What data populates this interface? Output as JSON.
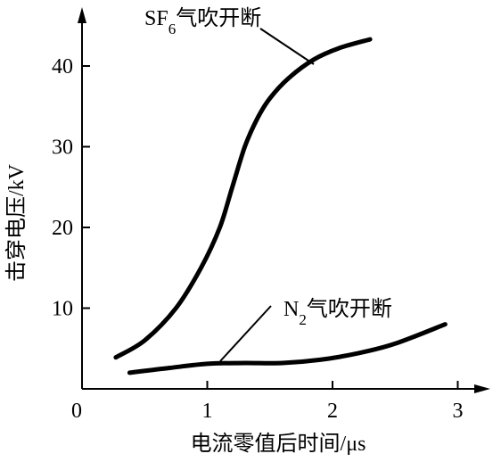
{
  "chart_data": {
    "type": "line",
    "xlabel": "电流零值后时间/μs",
    "ylabel": "击穿电压/kV",
    "origin_label": "0",
    "xlim": [
      0,
      3.3
    ],
    "ylim": [
      0,
      47
    ],
    "x_ticks": [
      {
        "value": 1,
        "label": "1"
      },
      {
        "value": 2,
        "label": "2"
      },
      {
        "value": 3,
        "label": "3"
      }
    ],
    "y_ticks": [
      {
        "value": 10,
        "label": "10"
      },
      {
        "value": 20,
        "label": "20"
      },
      {
        "value": 30,
        "label": "30"
      },
      {
        "value": 40,
        "label": "40"
      }
    ],
    "grid": false,
    "legend": "none",
    "series": [
      {
        "name": "SF6气吹开断",
        "label_main": "SF",
        "label_sub": "6",
        "label_rest": "气吹开断",
        "x": [
          0.27,
          0.5,
          0.75,
          0.95,
          1.1,
          1.2,
          1.3,
          1.4,
          1.5,
          1.65,
          1.85,
          2.05,
          2.3
        ],
        "values": [
          3.9,
          6.0,
          10.0,
          15.0,
          20.0,
          25.0,
          30.0,
          33.5,
          36.0,
          38.5,
          40.8,
          42.2,
          43.3
        ]
      },
      {
        "name": "N2气吹开断",
        "label_main": "N",
        "label_sub": "2",
        "label_rest": "气吹开断",
        "x": [
          0.38,
          0.7,
          1.0,
          1.3,
          1.6,
          1.9,
          2.2,
          2.5,
          2.9
        ],
        "values": [
          2.0,
          2.6,
          3.1,
          3.2,
          3.2,
          3.6,
          4.4,
          5.6,
          8.0
        ]
      }
    ]
  }
}
